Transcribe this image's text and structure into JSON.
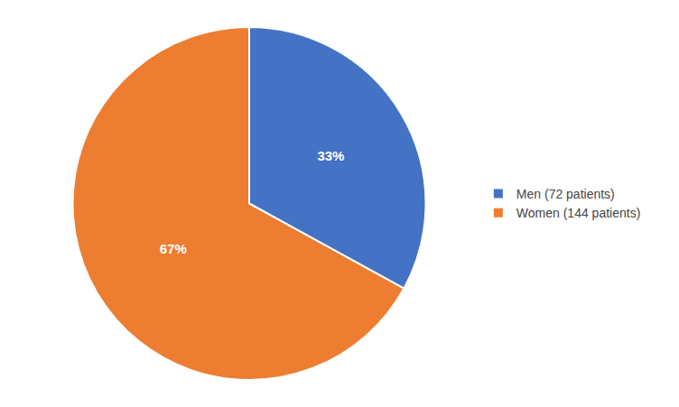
{
  "chart_data": {
    "type": "pie",
    "categories": [
      "Men (72 patients)",
      "Women (144 patients)"
    ],
    "values": [
      33,
      67
    ],
    "value_labels": [
      "33%",
      "67%"
    ],
    "colors": [
      "#4472C4",
      "#ED7D31"
    ],
    "data_labels": true,
    "legend": "right"
  }
}
